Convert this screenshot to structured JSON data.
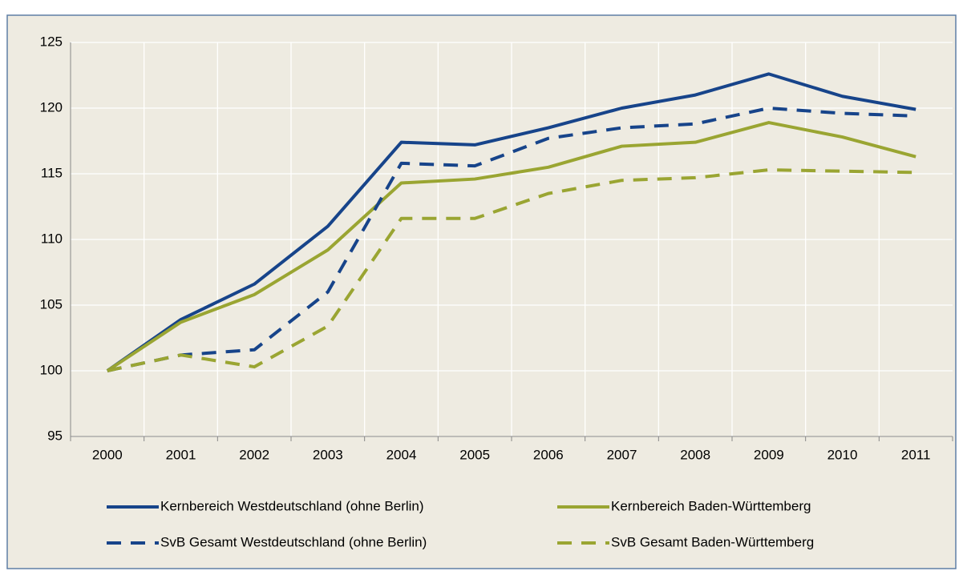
{
  "chart_data": {
    "type": "line",
    "categories": [
      "2000",
      "2001",
      "2002",
      "2003",
      "2004",
      "2005",
      "2006",
      "2007",
      "2008",
      "2009",
      "2010",
      "2011"
    ],
    "series": [
      {
        "name": "Kernbereich Westdeutschland (ohne Berlin)",
        "color": "#17448a",
        "dashed": false,
        "values": [
          100,
          103.9,
          106.6,
          111.0,
          117.4,
          117.2,
          118.5,
          120.0,
          121.0,
          122.6,
          120.9,
          119.9
        ]
      },
      {
        "name": "Kernbereich Baden-Württemberg",
        "color": "#9aa532",
        "dashed": false,
        "values": [
          100,
          103.7,
          105.8,
          109.2,
          114.3,
          114.6,
          115.5,
          117.1,
          117.4,
          118.9,
          117.8,
          116.3
        ]
      },
      {
        "name": "SvB Gesamt Westdeutschland (ohne Berlin)",
        "color": "#17448a",
        "dashed": true,
        "values": [
          100,
          101.2,
          101.6,
          106.0,
          115.8,
          115.6,
          117.7,
          118.5,
          118.8,
          120.0,
          119.6,
          119.4
        ]
      },
      {
        "name": "SvB Gesamt Baden-Württemberg",
        "color": "#9aa532",
        "dashed": true,
        "values": [
          100,
          101.2,
          100.3,
          103.4,
          111.6,
          111.6,
          113.5,
          114.5,
          114.7,
          115.3,
          115.2,
          115.1
        ]
      }
    ],
    "ylim": [
      95,
      125
    ],
    "yticks": [
      95,
      100,
      105,
      110,
      115,
      120,
      125
    ],
    "grid": true,
    "legend": "bottom"
  }
}
